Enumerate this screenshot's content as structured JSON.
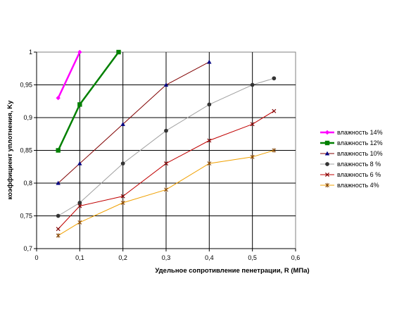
{
  "chart_data": {
    "type": "line",
    "title": "",
    "xlabel": "Удельное сопротивление пенетрации, R (МПа)",
    "ylabel": "коэффициент уплотнения, Ky",
    "xlim": [
      0,
      0.6
    ],
    "ylim": [
      0.7,
      1.0
    ],
    "x_ticks": [
      "0",
      "0,1",
      "0,2",
      "0,3",
      "0,4",
      "0,5",
      "0,6"
    ],
    "y_ticks": [
      "0,7",
      "0,75",
      "0,8",
      "0,85",
      "0,9",
      "0,95",
      "1"
    ],
    "grid": true,
    "legend_position": "right",
    "series": [
      {
        "name": "влажность 14%",
        "color": "#ff00ff",
        "marker": "diamond",
        "width": 2.5,
        "x": [
          0.05,
          0.1
        ],
        "y": [
          0.93,
          1.0
        ]
      },
      {
        "name": "влажность 12%",
        "color": "#008000",
        "marker": "square",
        "width": 2.5,
        "x": [
          0.05,
          0.1,
          0.19
        ],
        "y": [
          0.85,
          0.92,
          1.0
        ]
      },
      {
        "name": "влажность 10%",
        "color": "#800000",
        "marker": "triangle",
        "marker_color": "#000080",
        "width": 1,
        "x": [
          0.05,
          0.1,
          0.2,
          0.3,
          0.4
        ],
        "y": [
          0.8,
          0.83,
          0.89,
          0.95,
          0.985
        ]
      },
      {
        "name": "влажность 8 %",
        "color": "#a0a0a0",
        "marker": "circle",
        "marker_color": "#333333",
        "width": 1,
        "x": [
          0.05,
          0.1,
          0.2,
          0.3,
          0.4,
          0.5,
          0.55
        ],
        "y": [
          0.75,
          0.77,
          0.83,
          0.88,
          0.92,
          0.95,
          0.96
        ]
      },
      {
        "name": "влажность 6 %",
        "color": "#c00000",
        "marker": "x",
        "marker_color": "#800000",
        "width": 1,
        "x": [
          0.05,
          0.1,
          0.2,
          0.3,
          0.4,
          0.5,
          0.55
        ],
        "y": [
          0.73,
          0.765,
          0.78,
          0.83,
          0.865,
          0.89,
          0.91
        ]
      },
      {
        "name": "влажность 4%",
        "color": "#f0a000",
        "marker": "star",
        "marker_color": "#804000",
        "width": 1,
        "x": [
          0.05,
          0.1,
          0.2,
          0.3,
          0.4,
          0.5,
          0.55
        ],
        "y": [
          0.72,
          0.74,
          0.77,
          0.79,
          0.83,
          0.84,
          0.85
        ]
      }
    ]
  }
}
